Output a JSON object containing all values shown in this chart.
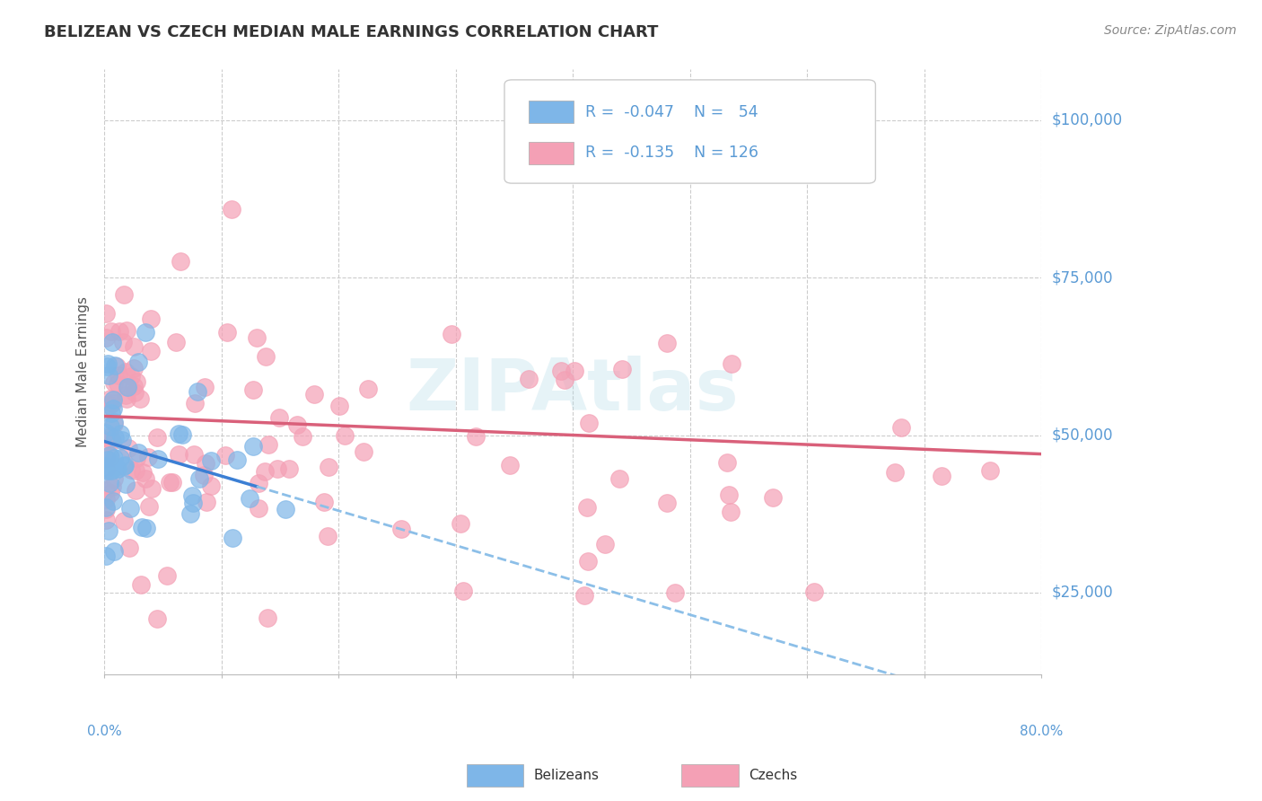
{
  "title": "BELIZEAN VS CZECH MEDIAN MALE EARNINGS CORRELATION CHART",
  "source": "Source: ZipAtlas.com",
  "ylabel": "Median Male Earnings",
  "xlim": [
    0.0,
    0.8
  ],
  "ylim": [
    12000,
    108000
  ],
  "yticks": [
    25000,
    50000,
    75000,
    100000
  ],
  "ytick_labels": [
    "$25,000",
    "$50,000",
    "$75,000",
    "$100,000"
  ],
  "xtick_labels_show": [
    "0.0%",
    "80.0%"
  ],
  "belizean_color": "#7eb6e8",
  "czech_color": "#f4a0b5",
  "trend_belizean_solid_color": "#3b7fd4",
  "trend_belizean_dash_color": "#8cbfe8",
  "trend_czech_color": "#d9607a",
  "bg_color": "#ffffff",
  "grid_color": "#cccccc",
  "R_belizean": -0.047,
  "N_belizean": 54,
  "R_czech": -0.135,
  "N_czech": 126,
  "legend_label_belizean": "Belizeans",
  "legend_label_czech": "Czechs",
  "watermark": "ZIPAtlas",
  "title_color": "#333333",
  "source_color": "#888888",
  "axis_label_color": "#555555",
  "ytick_color": "#5b9bd5",
  "legend_text_color": "#5b9bd5"
}
